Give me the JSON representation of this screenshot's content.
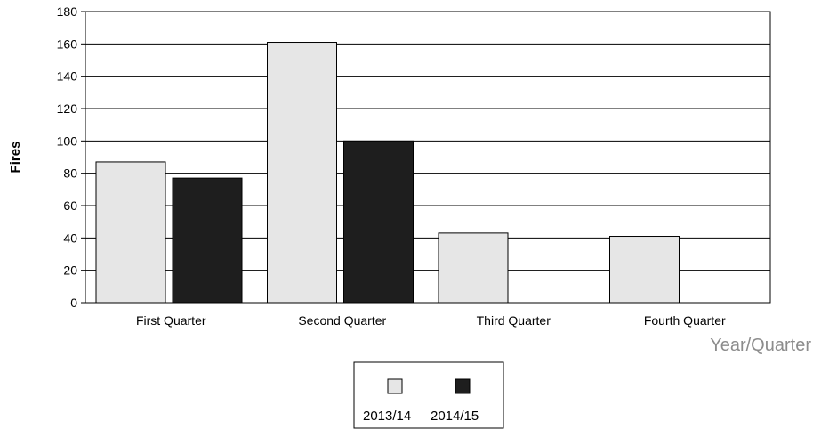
{
  "chart_data": {
    "type": "bar",
    "categories": [
      "First Quarter",
      "Second Quarter",
      "Third Quarter",
      "Fourth Quarter"
    ],
    "series": [
      {
        "name": "2013/14",
        "values": [
          87,
          161,
          43,
          41
        ],
        "color": "#e6e6e6"
      },
      {
        "name": "2014/15",
        "values": [
          77,
          100,
          0,
          0
        ],
        "color": "#1e1e1e"
      }
    ],
    "xlabel": "Year/Quarter",
    "ylabel": "Fires",
    "ylim": [
      0,
      180
    ],
    "yticks": [
      0,
      20,
      40,
      60,
      80,
      100,
      120,
      140,
      160,
      180
    ],
    "grid": true,
    "legend_position": "bottom-center"
  }
}
